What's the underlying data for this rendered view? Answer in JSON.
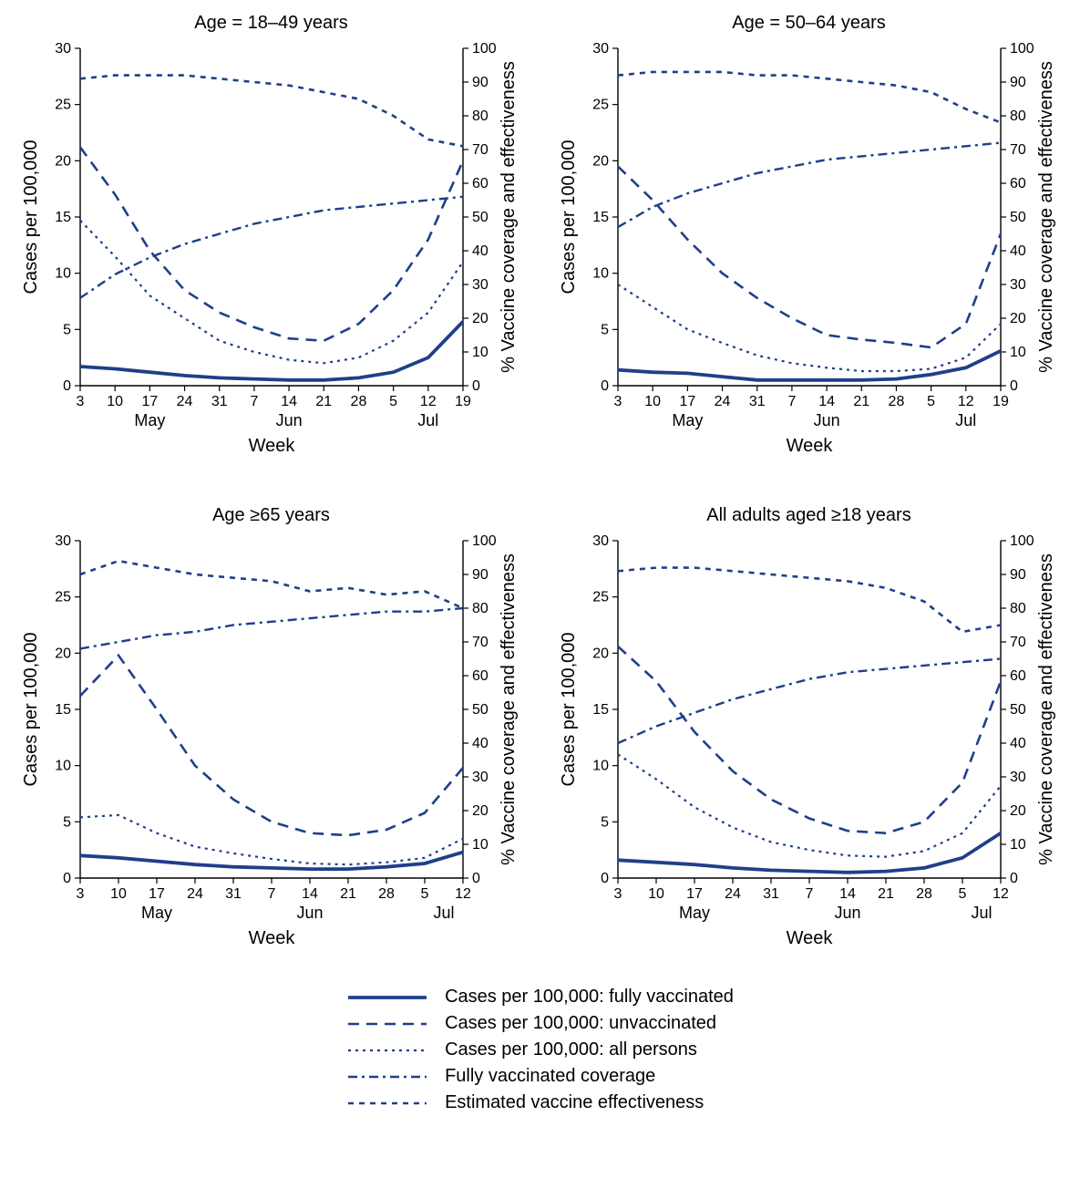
{
  "global": {
    "series_color": "#1f3f8a",
    "bg_color": "#ffffff",
    "axis_color": "#000000",
    "y_left_label": "Cases per 100,000",
    "y_right_label": "% Vaccine coverage and effectiveness",
    "x_label": "Week",
    "y_left": {
      "min": 0,
      "max": 30,
      "step": 5
    },
    "y_right": {
      "min": 0,
      "max": 100,
      "step": 10
    },
    "weeks_days": [
      3,
      10,
      17,
      24,
      31,
      7,
      14,
      21,
      28,
      5,
      12,
      19
    ],
    "month_labels": [
      "May",
      "Jun",
      "Jul"
    ],
    "title_fontsize": 20,
    "label_fontsize": 20,
    "tick_fontsize": 16
  },
  "series_styles": {
    "vaccinated": {
      "stroke_width": 3.8,
      "dash": null
    },
    "unvaccinated": {
      "stroke_width": 2.6,
      "dash": "12,8"
    },
    "all_persons": {
      "stroke_width": 2.2,
      "dash": "3,5"
    },
    "coverage": {
      "stroke_width": 2.4,
      "dash": "10,5,3,5"
    },
    "effectiveness": {
      "stroke_width": 2.6,
      "dash": "6,6"
    }
  },
  "panels": [
    {
      "id": "p18_49",
      "title": "Age = 18–49 years",
      "n_ticks": 12,
      "month_centers": [
        2,
        6,
        10
      ],
      "series": {
        "vaccinated": [
          1.7,
          1.5,
          1.2,
          0.9,
          0.7,
          0.6,
          0.5,
          0.5,
          0.7,
          1.2,
          2.5,
          5.7
        ],
        "unvaccinated": [
          21.2,
          17.0,
          12.0,
          8.5,
          6.5,
          5.2,
          4.2,
          4.0,
          5.5,
          8.5,
          13.0,
          20.0
        ],
        "all_persons": [
          14.7,
          11.5,
          8.0,
          6.0,
          4.0,
          3.0,
          2.3,
          2.0,
          2.5,
          4.0,
          6.5,
          11.0
        ],
        "coverage": [
          26,
          33,
          38,
          42,
          45,
          48,
          50,
          52,
          53,
          54,
          55,
          56
        ],
        "effectiveness": [
          91,
          92,
          92,
          92,
          91,
          90,
          89,
          87,
          85,
          80,
          73,
          71
        ]
      }
    },
    {
      "id": "p50_64",
      "title": "Age = 50–64 years",
      "n_ticks": 12,
      "month_centers": [
        2,
        6,
        10
      ],
      "series": {
        "vaccinated": [
          1.4,
          1.2,
          1.1,
          0.8,
          0.5,
          0.5,
          0.5,
          0.5,
          0.6,
          1.0,
          1.6,
          3.1
        ],
        "unvaccinated": [
          19.5,
          16.5,
          13.0,
          10.0,
          7.8,
          6.0,
          4.5,
          4.1,
          3.8,
          3.4,
          5.5,
          13.5
        ],
        "all_persons": [
          9.0,
          7.0,
          5.0,
          3.8,
          2.7,
          2.0,
          1.6,
          1.3,
          1.3,
          1.5,
          2.5,
          5.5
        ],
        "coverage": [
          47,
          53,
          57,
          60,
          63,
          65,
          67,
          68,
          69,
          70,
          71,
          72
        ],
        "effectiveness": [
          92,
          93,
          93,
          93,
          92,
          92,
          91,
          90,
          89,
          87,
          82,
          78
        ]
      }
    },
    {
      "id": "p65",
      "title": "Age ≥65 years",
      "n_ticks": 11,
      "month_centers": [
        2,
        6,
        9.5
      ],
      "series": {
        "vaccinated": [
          2.0,
          1.8,
          1.5,
          1.2,
          1.0,
          0.9,
          0.8,
          0.8,
          1.0,
          1.3,
          2.3
        ],
        "unvaccinated": [
          16.2,
          19.8,
          15.0,
          10.0,
          7.0,
          5.0,
          4.0,
          3.8,
          4.3,
          5.8,
          9.8
        ],
        "all_persons": [
          5.4,
          5.6,
          4.0,
          2.8,
          2.2,
          1.7,
          1.3,
          1.2,
          1.4,
          1.8,
          3.5
        ],
        "coverage": [
          68,
          70,
          72,
          73,
          75,
          76,
          77,
          78,
          79,
          79,
          80
        ],
        "effectiveness": [
          90,
          94,
          92,
          90,
          89,
          88,
          85,
          86,
          84,
          85,
          80
        ]
      }
    },
    {
      "id": "p_all",
      "title": "All adults aged ≥18 years",
      "n_ticks": 11,
      "month_centers": [
        2,
        6,
        9.5
      ],
      "series": {
        "vaccinated": [
          1.6,
          1.4,
          1.2,
          0.9,
          0.7,
          0.6,
          0.5,
          0.6,
          0.9,
          1.8,
          4.0
        ],
        "unvaccinated": [
          20.6,
          17.5,
          13.0,
          9.5,
          7.0,
          5.3,
          4.2,
          4.0,
          5.0,
          8.5,
          17.5
        ],
        "all_persons": [
          11.0,
          8.8,
          6.3,
          4.5,
          3.2,
          2.5,
          2.0,
          1.9,
          2.4,
          4.0,
          8.2
        ],
        "coverage": [
          40,
          45,
          49,
          53,
          56,
          59,
          61,
          62,
          63,
          64,
          65
        ],
        "effectiveness": [
          91,
          92,
          92,
          91,
          90,
          89,
          88,
          86,
          82,
          73,
          75
        ]
      }
    }
  ],
  "legend": [
    {
      "key": "vaccinated",
      "label": "Cases per 100,000: fully vaccinated"
    },
    {
      "key": "unvaccinated",
      "label": "Cases per 100,000: unvaccinated"
    },
    {
      "key": "all_persons",
      "label": "Cases per 100,000: all persons"
    },
    {
      "key": "coverage",
      "label": "Fully vaccinated coverage"
    },
    {
      "key": "effectiveness",
      "label": "Estimated vaccine effectiveness"
    }
  ]
}
